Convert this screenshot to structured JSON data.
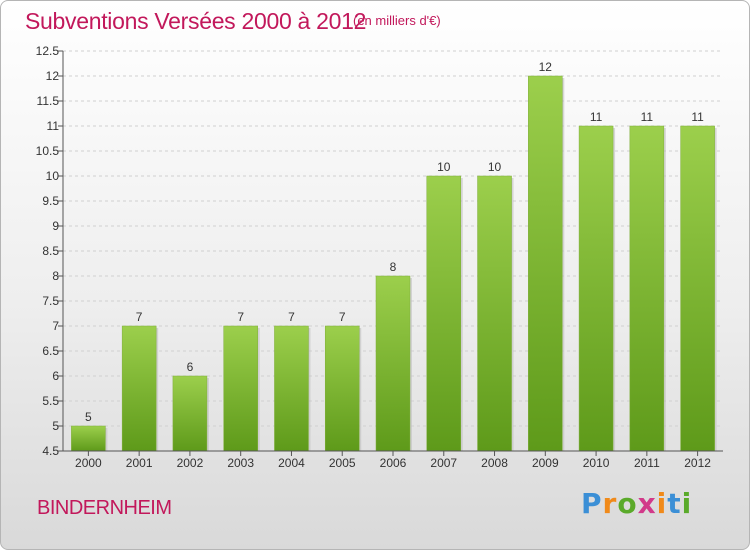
{
  "header": {
    "title": "Subventions Versées 2000 à 2012",
    "subtitle": "(en milliers d'€)"
  },
  "footer": {
    "commune": "BINDERNHEIM",
    "brand": "Proxiti"
  },
  "colors": {
    "title": "#c2185b",
    "bar_top": "#9ccf4c",
    "bar_bottom": "#5e9a1a",
    "axis": "#555555",
    "grid": "#d0d0d0"
  },
  "chart_data": {
    "type": "bar",
    "title": "Subventions Versées 2000 à 2012",
    "xlabel": "",
    "ylabel": "",
    "ylim": [
      4.5,
      12.5
    ],
    "yticks": [
      "4.5",
      "5",
      "5.5",
      "6",
      "6.5",
      "7",
      "7.5",
      "8",
      "8.5",
      "9",
      "9.5",
      "10",
      "10.5",
      "11",
      "11.5",
      "12",
      "12.5"
    ],
    "categories": [
      "2000",
      "2001",
      "2002",
      "2003",
      "2004",
      "2005",
      "2006",
      "2007",
      "2008",
      "2009",
      "2010",
      "2011",
      "2012"
    ],
    "values": [
      5,
      7,
      6,
      7,
      7,
      7,
      8,
      10,
      10,
      12,
      11,
      11,
      11
    ],
    "labels": [
      "5",
      "7",
      "6",
      "7",
      "7",
      "7",
      "8",
      "10",
      "10",
      "12",
      "11",
      "11",
      "11"
    ],
    "grid": "horizontal dashed",
    "legend": "none"
  }
}
